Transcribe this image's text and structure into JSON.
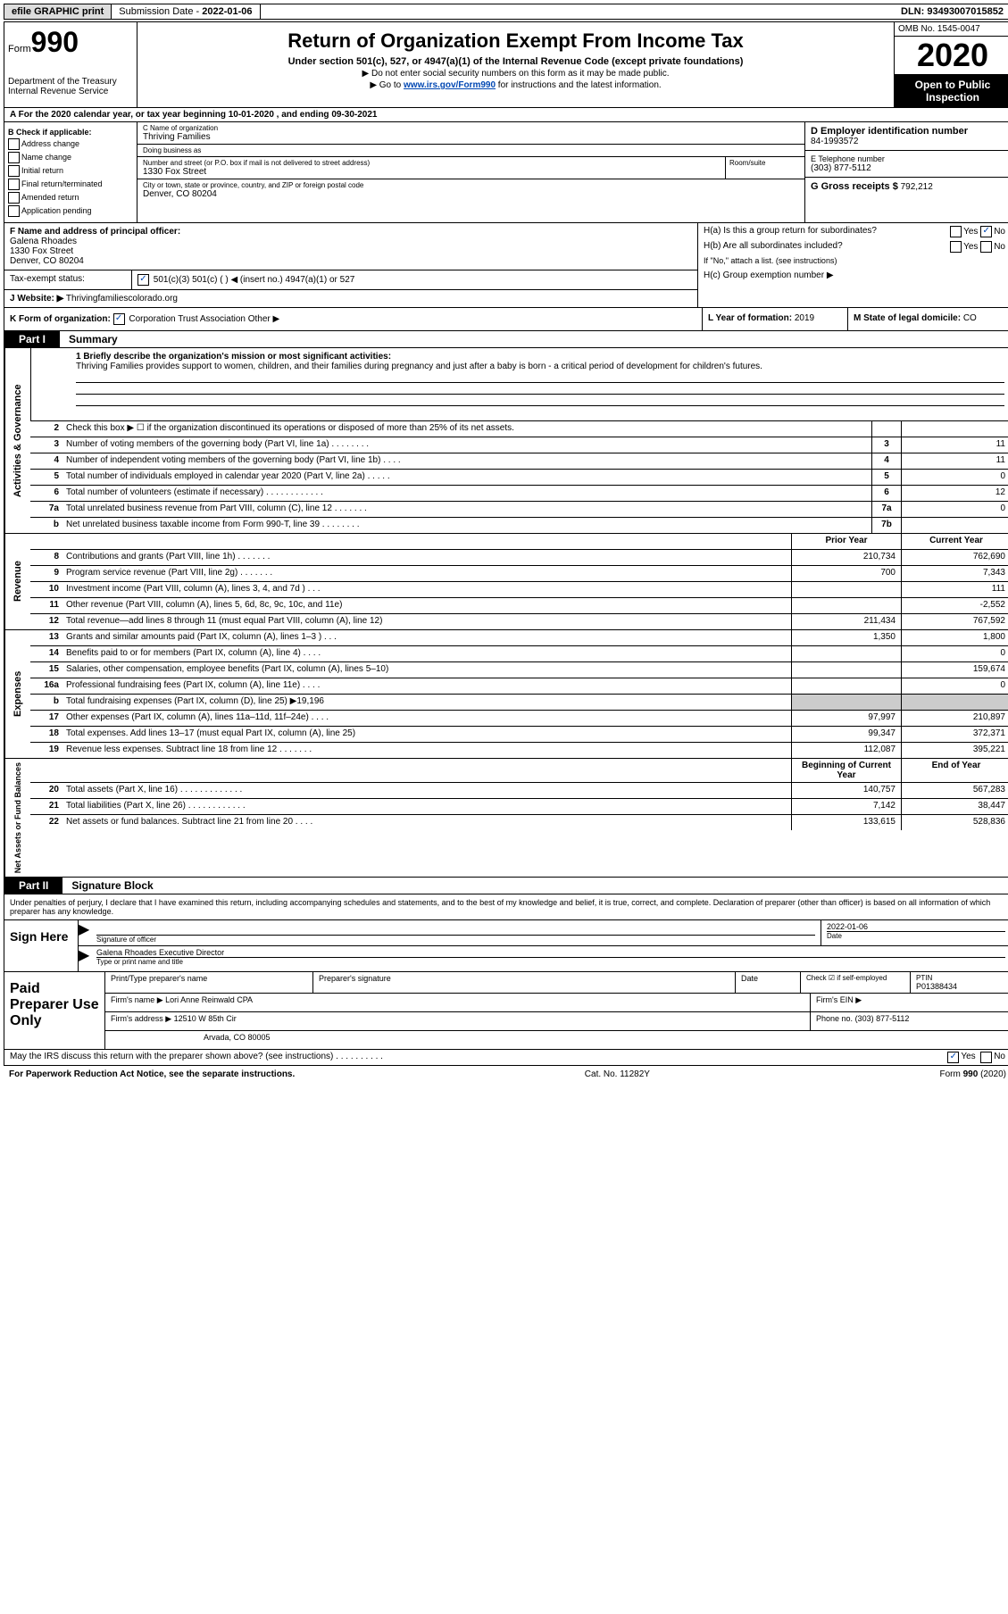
{
  "topbar": {
    "efile": "efile GRAPHIC print",
    "sub_label": "Submission Date",
    "sub_date": "2022-01-06",
    "dln": "DLN: 93493007015852"
  },
  "header": {
    "form_label": "Form",
    "form_num": "990",
    "dept": "Department of the Treasury\nInternal Revenue Service",
    "title": "Return of Organization Exempt From Income Tax",
    "sub": "Under section 501(c), 527, or 4947(a)(1) of the Internal Revenue Code (except private foundations)",
    "line1": "▶ Do not enter social security numbers on this form as it may be made public.",
    "line2_pre": "▶ Go to ",
    "line2_link": "www.irs.gov/Form990",
    "line2_post": " for instructions and the latest information.",
    "omb": "OMB No. 1545-0047",
    "year": "2020",
    "public": "Open to Public Inspection"
  },
  "period": {
    "a": "A For the 2020 calendar year, or tax year beginning 10-01-2020     , and ending 09-30-2021"
  },
  "b": {
    "label": "B Check if applicable:",
    "opts": [
      "Address change",
      "Name change",
      "Initial return",
      "Final return/terminated",
      "Amended return",
      "Application pending"
    ]
  },
  "c": {
    "name_label": "C Name of organization",
    "name": "Thriving Families",
    "dba_label": "Doing business as",
    "dba": "",
    "addr_label": "Number and street (or P.O. box if mail is not delivered to street address)",
    "addr": "1330 Fox Street",
    "room_label": "Room/suite",
    "city_label": "City or town, state or province, country, and ZIP or foreign postal code",
    "city": "Denver, CO  80204"
  },
  "d": {
    "ein_label": "D Employer identification number",
    "ein": "84-1993572",
    "tel_label": "E Telephone number",
    "tel": "(303) 877-5112",
    "gross_label": "G Gross receipts $",
    "gross": "792,212"
  },
  "f": {
    "label": "F  Name and address of principal officer:",
    "name": "Galena Rhoades",
    "addr1": "1330 Fox Street",
    "addr2": "Denver, CO  80204"
  },
  "tax": {
    "label": "Tax-exempt status:",
    "opts": "501(c)(3)       501(c) (   ) ◀ (insert no.)       4947(a)(1) or      527"
  },
  "j": {
    "label": "J",
    "web_label": "Website: ▶",
    "web": "Thrivingfamiliescolorado.org"
  },
  "h": {
    "a_label": "H(a)  Is this a group return for subordinates?",
    "a_val": "No",
    "b_label": "H(b)  Are all subordinates included?",
    "b_note": "If \"No,\" attach a list. (see instructions)",
    "c_label": "H(c)  Group exemption number ▶"
  },
  "k": {
    "label": "K Form of organization:",
    "opts": "Corporation     Trust     Association     Other ▶"
  },
  "l": {
    "label": "L Year of formation:",
    "val": "2019"
  },
  "m": {
    "label": "M State of legal domicile:",
    "val": "CO"
  },
  "part1": {
    "tag": "Part I",
    "title": "Summary",
    "mission_label": "1   Briefly describe the organization's mission or most significant activities:",
    "mission": "Thriving Families provides support to women, children, and their families during pregnancy and just after a baby is born - a critical period of development for children's futures."
  },
  "side_labels": {
    "act": "Activities & Governance",
    "rev": "Revenue",
    "exp": "Expenses",
    "net": "Net Assets or Fund Balances"
  },
  "gov_lines": [
    {
      "n": "2",
      "t": "Check this box ▶ ☐  if the organization discontinued its operations or disposed of more than 25% of its net assets.",
      "box": "",
      "v": ""
    },
    {
      "n": "3",
      "t": "Number of voting members of the governing body (Part VI, line 1a)   .   .   .   .   .   .   .   .",
      "box": "3",
      "v": "11"
    },
    {
      "n": "4",
      "t": "Number of independent voting members of the governing body (Part VI, line 1b)   .   .   .   .",
      "box": "4",
      "v": "11"
    },
    {
      "n": "5",
      "t": "Total number of individuals employed in calendar year 2020 (Part V, line 2a)   .   .   .   .   .",
      "box": "5",
      "v": "0"
    },
    {
      "n": "6",
      "t": "Total number of volunteers (estimate if necessary)    .   .   .   .   .   .   .   .   .   .   .   .",
      "box": "6",
      "v": "12"
    },
    {
      "n": "7a",
      "t": "Total unrelated business revenue from Part VIII, column (C), line 12   .   .   .   .   .   .   .",
      "box": "7a",
      "v": "0"
    },
    {
      "n": "b",
      "t": "Net unrelated business taxable income from Form 990-T, line 39    .   .   .   .   .   .   .   .",
      "box": "7b",
      "v": ""
    }
  ],
  "yr_hdr": {
    "prior": "Prior Year",
    "current": "Current Year"
  },
  "rev_lines": [
    {
      "n": "8",
      "t": "Contributions and grants (Part VIII, line 1h)   .   .   .   .   .   .   .",
      "p": "210,734",
      "c": "762,690"
    },
    {
      "n": "9",
      "t": "Program service revenue (Part VIII, line 2g)    .   .   .   .   .   .   .",
      "p": "700",
      "c": "7,343"
    },
    {
      "n": "10",
      "t": "Investment income (Part VIII, column (A), lines 3, 4, and 7d )   .   .   .",
      "p": "",
      "c": "111"
    },
    {
      "n": "11",
      "t": "Other revenue (Part VIII, column (A), lines 5, 6d, 8c, 9c, 10c, and 11e)",
      "p": "",
      "c": "-2,552"
    },
    {
      "n": "12",
      "t": "Total revenue—add lines 8 through 11 (must equal Part VIII, column (A), line 12)",
      "p": "211,434",
      "c": "767,592"
    }
  ],
  "exp_lines": [
    {
      "n": "13",
      "t": "Grants and similar amounts paid (Part IX, column (A), lines 1–3 )   .   .   .",
      "p": "1,350",
      "c": "1,800"
    },
    {
      "n": "14",
      "t": "Benefits paid to or for members (Part IX, column (A), line 4)   .   .   .   .",
      "p": "",
      "c": "0"
    },
    {
      "n": "15",
      "t": "Salaries, other compensation, employee benefits (Part IX, column (A), lines 5–10)",
      "p": "",
      "c": "159,674"
    },
    {
      "n": "16a",
      "t": "Professional fundraising fees (Part IX, column (A), line 11e)   .   .   .   .",
      "p": "",
      "c": "0"
    },
    {
      "n": "b",
      "t": "Total fundraising expenses (Part IX, column (D), line 25) ▶19,196",
      "p": "shaded",
      "c": "shaded"
    },
    {
      "n": "17",
      "t": "Other expenses (Part IX, column (A), lines 11a–11d, 11f–24e)   .   .   .   .",
      "p": "97,997",
      "c": "210,897"
    },
    {
      "n": "18",
      "t": "Total expenses. Add lines 13–17 (must equal Part IX, column (A), line 25)",
      "p": "99,347",
      "c": "372,371"
    },
    {
      "n": "19",
      "t": "Revenue less expenses. Subtract line 18 from line 12 .   .   .   .   .   .   .",
      "p": "112,087",
      "c": "395,221"
    }
  ],
  "net_hdr": {
    "begin": "Beginning of Current Year",
    "end": "End of Year"
  },
  "net_lines": [
    {
      "n": "20",
      "t": "Total assets (Part X, line 16)  .   .   .   .   .   .   .   .   .   .   .   .   .",
      "p": "140,757",
      "c": "567,283"
    },
    {
      "n": "21",
      "t": "Total liabilities (Part X, line 26)  .   .   .   .   .   .   .   .   .   .   .   .",
      "p": "7,142",
      "c": "38,447"
    },
    {
      "n": "22",
      "t": "Net assets or fund balances. Subtract line 21 from line 20   .   .   .   .",
      "p": "133,615",
      "c": "528,836"
    }
  ],
  "part2": {
    "tag": "Part II",
    "title": "Signature Block",
    "penal": "Under penalties of perjury, I declare that I have examined this return, including accompanying schedules and statements, and to the best of my knowledge and belief, it is true, correct, and complete. Declaration of preparer (other than officer) is based on all information of which preparer has any knowledge."
  },
  "sign": {
    "here": "Sign Here",
    "sig_label": "Signature of officer",
    "date_label": "Date",
    "date": "2022-01-06",
    "name": "Galena Rhoades  Executive Director",
    "name_label": "Type or print name and title"
  },
  "prep": {
    "label": "Paid Preparer Use Only",
    "ptname_label": "Print/Type preparer's name",
    "psig_label": "Preparer's signature",
    "pdate_label": "Date",
    "check_label": "Check ☑ if self-employed",
    "ptin_label": "PTIN",
    "ptin": "P01388434",
    "firm_label": "Firm's name    ▶",
    "firm": "Lori Anne Reinwald CPA",
    "ein_label": "Firm's EIN ▶",
    "addr_label": "Firm's address ▶",
    "addr1": "12510 W 85th Cir",
    "addr2": "Arvada, CO  80005",
    "phone_label": "Phone no.",
    "phone": "(303) 877-5112"
  },
  "foot": {
    "irs_q": "May the IRS discuss this return with the preparer shown above? (see instructions)   .   .   .   .   .   .   .   .   .   .",
    "yes": "Yes",
    "no": "No",
    "paperwork": "For Paperwork Reduction Act Notice, see the separate instructions.",
    "cat": "Cat. No. 11282Y",
    "form": "Form 990 (2020)"
  },
  "colors": {
    "link": "#0047b3",
    "shade": "#cccccc",
    "black": "#000000"
  }
}
